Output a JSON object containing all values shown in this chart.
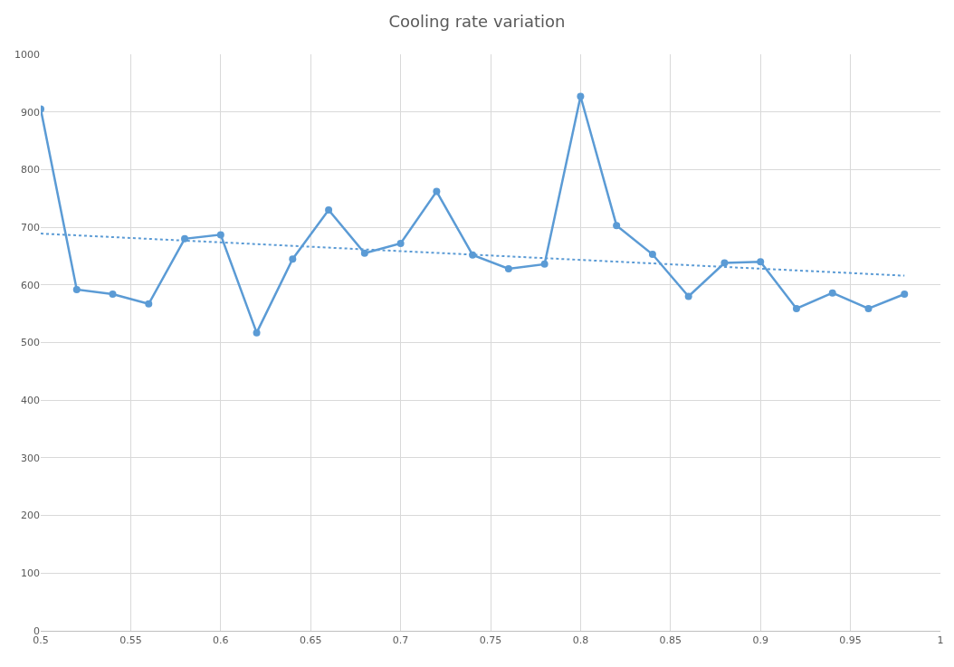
{
  "chart_data": {
    "type": "line",
    "title": "Cooling rate variation",
    "x": [
      0.5,
      0.52,
      0.54,
      0.56,
      0.58,
      0.6,
      0.62,
      0.64,
      0.66,
      0.68,
      0.7,
      0.72,
      0.74,
      0.76,
      0.78,
      0.8,
      0.82,
      0.84,
      0.86,
      0.88,
      0.9,
      0.92,
      0.94,
      0.96,
      0.98
    ],
    "series": [
      {
        "color": "#5b9bd5",
        "marker": "circle",
        "line_style": "solid",
        "values": [
          905,
          592,
          584,
          567,
          680,
          687,
          517,
          645,
          730,
          655,
          672,
          762,
          652,
          628,
          636,
          927,
          703,
          653,
          580,
          638,
          640,
          559,
          586,
          559,
          584
        ]
      },
      {
        "type": "line",
        "color": "#5b9bd5",
        "marker": "none",
        "line_style": "dotted",
        "x": [
          0.5,
          0.98
        ],
        "values": [
          689,
          616
        ]
      }
    ],
    "xlim": [
      0.5,
      1
    ],
    "xticks": [
      0.5,
      0.55,
      0.6,
      0.65,
      0.7,
      0.75,
      0.8,
      0.85,
      0.9,
      0.95,
      1
    ],
    "ylim": [
      0,
      1000
    ],
    "yticks": [
      0,
      100,
      200,
      300,
      400,
      500,
      600,
      700,
      800,
      900,
      1000
    ],
    "grid": true
  }
}
